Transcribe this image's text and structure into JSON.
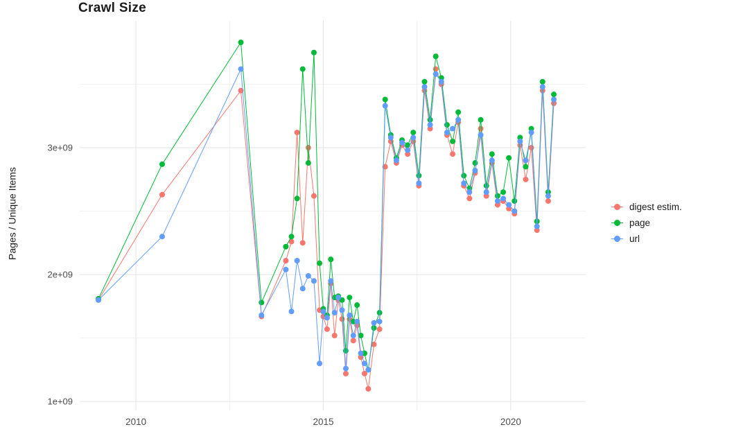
{
  "chart_data": {
    "type": "line",
    "markers": true,
    "title": "Crawl Size",
    "xlabel": "",
    "ylabel": "Pages / Unique Items",
    "grid": true,
    "legend_position": "right",
    "xlim": [
      2008.5,
      2022.0
    ],
    "ylim": [
      930000000.0,
      4000000000.0
    ],
    "x_ticks": [
      {
        "value": 2010,
        "label": "2010"
      },
      {
        "value": 2015,
        "label": "2015"
      },
      {
        "value": 2020,
        "label": "2020"
      }
    ],
    "y_ticks": [
      {
        "value": 1000000000.0,
        "label": "1e+09"
      },
      {
        "value": 2000000000.0,
        "label": "2e+09"
      },
      {
        "value": 3000000000.0,
        "label": "3e+09"
      }
    ],
    "x_minor_ticks": [
      2012.5,
      2017.5
    ],
    "y_minor_ticks": [
      1500000000.0,
      2500000000.0,
      3500000000.0
    ],
    "x": [
      2009.0,
      2010.7,
      2012.8,
      2013.35,
      2014.0,
      2014.15,
      2014.3,
      2014.45,
      2014.6,
      2014.75,
      2014.9,
      2015.0,
      2015.1,
      2015.2,
      2015.3,
      2015.4,
      2015.5,
      2015.6,
      2015.7,
      2015.8,
      2015.9,
      2016.0,
      2016.1,
      2016.2,
      2016.35,
      2016.5,
      2016.65,
      2016.8,
      2016.95,
      2017.1,
      2017.25,
      2017.4,
      2017.55,
      2017.7,
      2017.85,
      2018.0,
      2018.15,
      2018.3,
      2018.45,
      2018.6,
      2018.75,
      2018.9,
      2019.05,
      2019.2,
      2019.35,
      2019.5,
      2019.65,
      2019.8,
      2019.95,
      2020.1,
      2020.25,
      2020.4,
      2020.55,
      2020.7,
      2020.85,
      2021.0,
      2021.15
    ],
    "series": [
      {
        "name": "digest estim.",
        "color": "#F8766D",
        "y": [
          1800000000.0,
          2630000000.0,
          3450000000.0,
          1670000000.0,
          2110000000.0,
          2260000000.0,
          3120000000.0,
          2250000000.0,
          3000000000.0,
          2620000000.0,
          1720000000.0,
          1670000000.0,
          1570000000.0,
          1930000000.0,
          1520000000.0,
          1800000000.0,
          1650000000.0,
          1220000000.0,
          1650000000.0,
          1480000000.0,
          1600000000.0,
          1350000000.0,
          1220000000.0,
          1100000000.0,
          1450000000.0,
          1570000000.0,
          2850000000.0,
          3050000000.0,
          2880000000.0,
          3020000000.0,
          2950000000.0,
          3050000000.0,
          2700000000.0,
          3450000000.0,
          3150000000.0,
          3620000000.0,
          3500000000.0,
          3100000000.0,
          2950000000.0,
          3200000000.0,
          2700000000.0,
          2600000000.0,
          2800000000.0,
          3150000000.0,
          2620000000.0,
          2880000000.0,
          2550000000.0,
          2580000000.0,
          2520000000.0,
          2480000000.0,
          3020000000.0,
          2750000000.0,
          3000000000.0,
          2350000000.0,
          3450000000.0,
          2580000000.0,
          3350000000.0
        ]
      },
      {
        "name": "page",
        "color": "#00BA38",
        "y": [
          1810000000.0,
          2870000000.0,
          3830000000.0,
          1780000000.0,
          2220000000.0,
          2300000000.0,
          2600000000.0,
          3620000000.0,
          2880000000.0,
          3750000000.0,
          2090000000.0,
          1730000000.0,
          1680000000.0,
          2120000000.0,
          1820000000.0,
          1830000000.0,
          1800000000.0,
          1400000000.0,
          1820000000.0,
          1630000000.0,
          1760000000.0,
          1520000000.0,
          1380000000.0,
          1250000000.0,
          1580000000.0,
          1700000000.0,
          3380000000.0,
          3100000000.0,
          2920000000.0,
          3060000000.0,
          3020000000.0,
          3120000000.0,
          2780000000.0,
          3520000000.0,
          3220000000.0,
          3720000000.0,
          3550000000.0,
          3180000000.0,
          3050000000.0,
          3280000000.0,
          2780000000.0,
          2680000000.0,
          2880000000.0,
          3220000000.0,
          2700000000.0,
          2950000000.0,
          2620000000.0,
          2650000000.0,
          2920000000.0,
          2580000000.0,
          3080000000.0,
          2850000000.0,
          3150000000.0,
          2420000000.0,
          3520000000.0,
          2650000000.0,
          3420000000.0
        ]
      },
      {
        "name": "url",
        "color": "#619CFF",
        "y": [
          1800000000.0,
          2300000000.0,
          3620000000.0,
          1680000000.0,
          2040000000.0,
          1710000000.0,
          2110000000.0,
          1890000000.0,
          1990000000.0,
          1950000000.0,
          1300000000.0,
          1710000000.0,
          1660000000.0,
          1950000000.0,
          1700000000.0,
          1820000000.0,
          1720000000.0,
          1260000000.0,
          1680000000.0,
          1520000000.0,
          1630000000.0,
          1380000000.0,
          1300000000.0,
          1250000000.0,
          1620000000.0,
          1630000000.0,
          3330000000.0,
          3080000000.0,
          2900000000.0,
          3040000000.0,
          2980000000.0,
          3080000000.0,
          2720000000.0,
          3480000000.0,
          3180000000.0,
          3580000000.0,
          3520000000.0,
          3120000000.0,
          3150000000.0,
          3220000000.0,
          2720000000.0,
          2650000000.0,
          2820000000.0,
          3100000000.0,
          2650000000.0,
          2900000000.0,
          2580000000.0,
          2600000000.0,
          2550000000.0,
          2500000000.0,
          3050000000.0,
          2900000000.0,
          3120000000.0,
          2380000000.0,
          3480000000.0,
          2620000000.0,
          3380000000.0
        ]
      }
    ],
    "style": {
      "grid_major_color": "#e3e3e3",
      "grid_minor_color": "#f1f1f1",
      "tick_label_color": "#4d4d4d",
      "background": "#ffffff"
    }
  }
}
